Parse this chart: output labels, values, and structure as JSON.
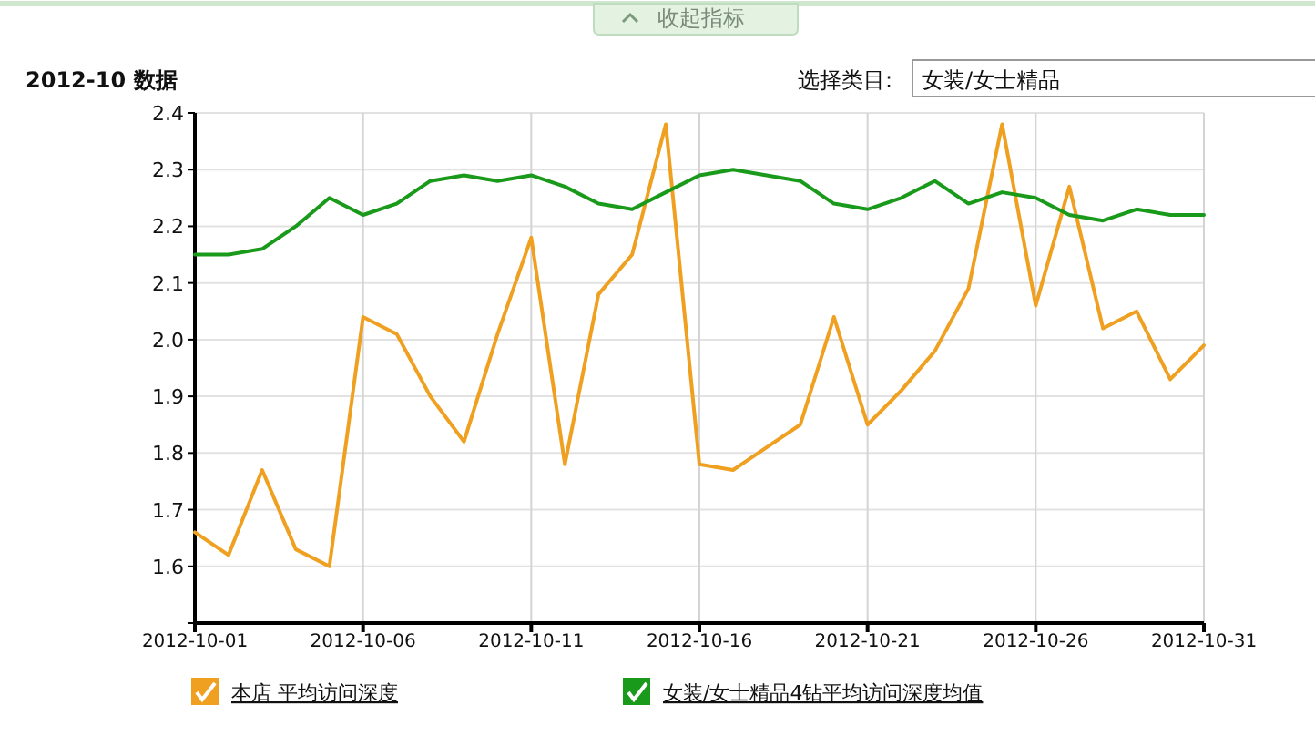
{
  "chart_data": {
    "type": "line",
    "title": "2012-10 数据",
    "annotations": [
      "收起指标",
      "选择类目:",
      "女装/女士精品"
    ],
    "x": [
      "2012-10-01",
      "2012-10-02",
      "2012-10-03",
      "2012-10-04",
      "2012-10-05",
      "2012-10-06",
      "2012-10-07",
      "2012-10-08",
      "2012-10-09",
      "2012-10-10",
      "2012-10-11",
      "2012-10-12",
      "2012-10-13",
      "2012-10-14",
      "2012-10-15",
      "2012-10-16",
      "2012-10-17",
      "2012-10-18",
      "2012-10-19",
      "2012-10-20",
      "2012-10-21",
      "2012-10-22",
      "2012-10-23",
      "2012-10-24",
      "2012-10-25",
      "2012-10-26",
      "2012-10-27",
      "2012-10-28",
      "2012-10-29",
      "2012-10-30",
      "2012-10-31"
    ],
    "series": [
      {
        "name": "本店 平均访问深度",
        "color": "#f0a020",
        "values": [
          1.66,
          1.62,
          1.77,
          1.63,
          1.6,
          2.04,
          2.01,
          1.9,
          1.82,
          2.01,
          2.18,
          1.78,
          2.08,
          2.15,
          2.38,
          1.78,
          1.77,
          1.81,
          1.85,
          2.04,
          1.85,
          1.91,
          1.98,
          2.09,
          2.38,
          2.06,
          2.27,
          2.02,
          2.05,
          1.93,
          1.99
        ]
      },
      {
        "name": "女装/女士精品4钻平均访问深度均值",
        "color": "#1a9a1a",
        "values": [
          2.15,
          2.15,
          2.16,
          2.2,
          2.25,
          2.22,
          2.24,
          2.28,
          2.29,
          2.28,
          2.29,
          2.27,
          2.24,
          2.23,
          2.26,
          2.29,
          2.3,
          2.29,
          2.28,
          2.24,
          2.23,
          2.25,
          2.28,
          2.24,
          2.26,
          2.25,
          2.22,
          2.21,
          2.23,
          2.22,
          2.22
        ]
      }
    ],
    "xlim": [
      "2012-10-01",
      "2012-10-31"
    ],
    "xticks": [
      "2012-10-01",
      "2012-10-06",
      "2012-10-11",
      "2012-10-16",
      "2012-10-21",
      "2012-10-26",
      "2012-10-31"
    ],
    "ylim": [
      1.5,
      2.4
    ],
    "yticks": [
      {
        "value": 1.5,
        "label": null
      },
      1.6,
      1.7,
      1.8,
      1.9,
      {
        "value": 2.0,
        "label": "2.0"
      },
      2.1,
      2.2,
      2.3,
      2.4
    ],
    "grid": true,
    "legend": "bottom left",
    "marker": "none",
    "line_style": "solid"
  }
}
